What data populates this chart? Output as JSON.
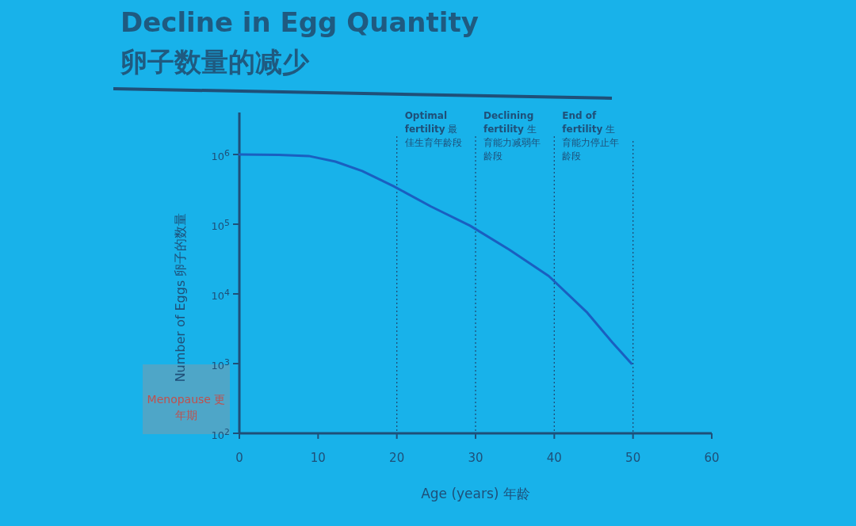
{
  "chart_data": {
    "type": "line",
    "title": "Decline in Egg Quantity",
    "subtitle": "卵子数量的减少",
    "xlabel": "Age (years) 年龄",
    "ylabel": "Number of Eggs 卵子的数量",
    "x": [
      0,
      5,
      8.8,
      12.2,
      15.6,
      19.6,
      24.3,
      29.3,
      34.3,
      39.3,
      44.1,
      47.4,
      49.8
    ],
    "series": [
      {
        "color": "#1a5fc0",
        "values": [
          1000000,
          990000,
          950000,
          790000,
          580000,
          350000,
          180000,
          95000,
          43000,
          18000,
          5500,
          2000,
          1000
        ]
      }
    ],
    "log": "y",
    "xlim": [
      0,
      60
    ],
    "ylim": [
      100,
      4000000
    ],
    "xticks": [
      0,
      10,
      20,
      30,
      40,
      50,
      60
    ],
    "yticks": [
      {
        "value": 100,
        "label": "10$^{2}$"
      },
      {
        "value": 1000,
        "label": "10$^{3}$"
      },
      {
        "value": 10000,
        "label": "10$^{4}$"
      },
      {
        "value": 100000,
        "label": "10$^{5}$"
      },
      {
        "value": 1000000,
        "label": "10$^{6}$"
      }
    ],
    "ref_lines": [
      {
        "axis": "x",
        "value": 20,
        "label": "**Optimal fertility** 最佳生育年龄段",
        "line_style": "dotted"
      },
      {
        "axis": "x",
        "value": 30,
        "label": "**Declining fertility** 生育能力减弱年龄段",
        "line_style": "dotted"
      },
      {
        "axis": "x",
        "value": 40,
        "label": "**End of fertility** 生育能力停止年龄段",
        "line_style": "dotted"
      },
      {
        "axis": "x",
        "value": 50,
        "line_style": "dotted"
      }
    ],
    "annotations": [
      "Menopause 更年期"
    ]
  }
}
